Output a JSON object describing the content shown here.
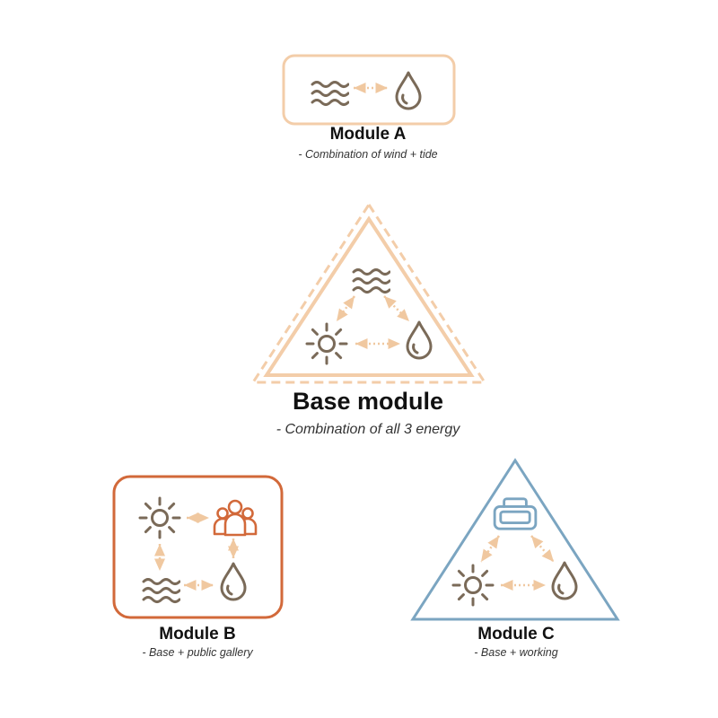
{
  "colors": {
    "peach": "#f3cda9",
    "icon_brown": "#7a6a58",
    "arrow_peach": "#f0c8a0",
    "rust": "#d2693a",
    "steel_blue": "#7ba5c1"
  },
  "modules": {
    "module_a": {
      "title": "Module A",
      "subtitle": "- Combination of wind + tide",
      "icons": [
        "wind-icon",
        "water-drop-icon"
      ]
    },
    "base": {
      "title": "Base module",
      "subtitle": "- Combination of all 3 energy",
      "icons": [
        "wind-icon",
        "sun-icon",
        "water-drop-icon"
      ]
    },
    "module_b": {
      "title": "Module B",
      "subtitle": "- Base + public gallery",
      "icons": [
        "sun-icon",
        "people-icon",
        "wind-icon",
        "water-drop-icon"
      ]
    },
    "module_c": {
      "title": "Module C",
      "subtitle": "- Base + working",
      "icons": [
        "vr-headset-icon",
        "sun-icon",
        "water-drop-icon"
      ]
    }
  }
}
